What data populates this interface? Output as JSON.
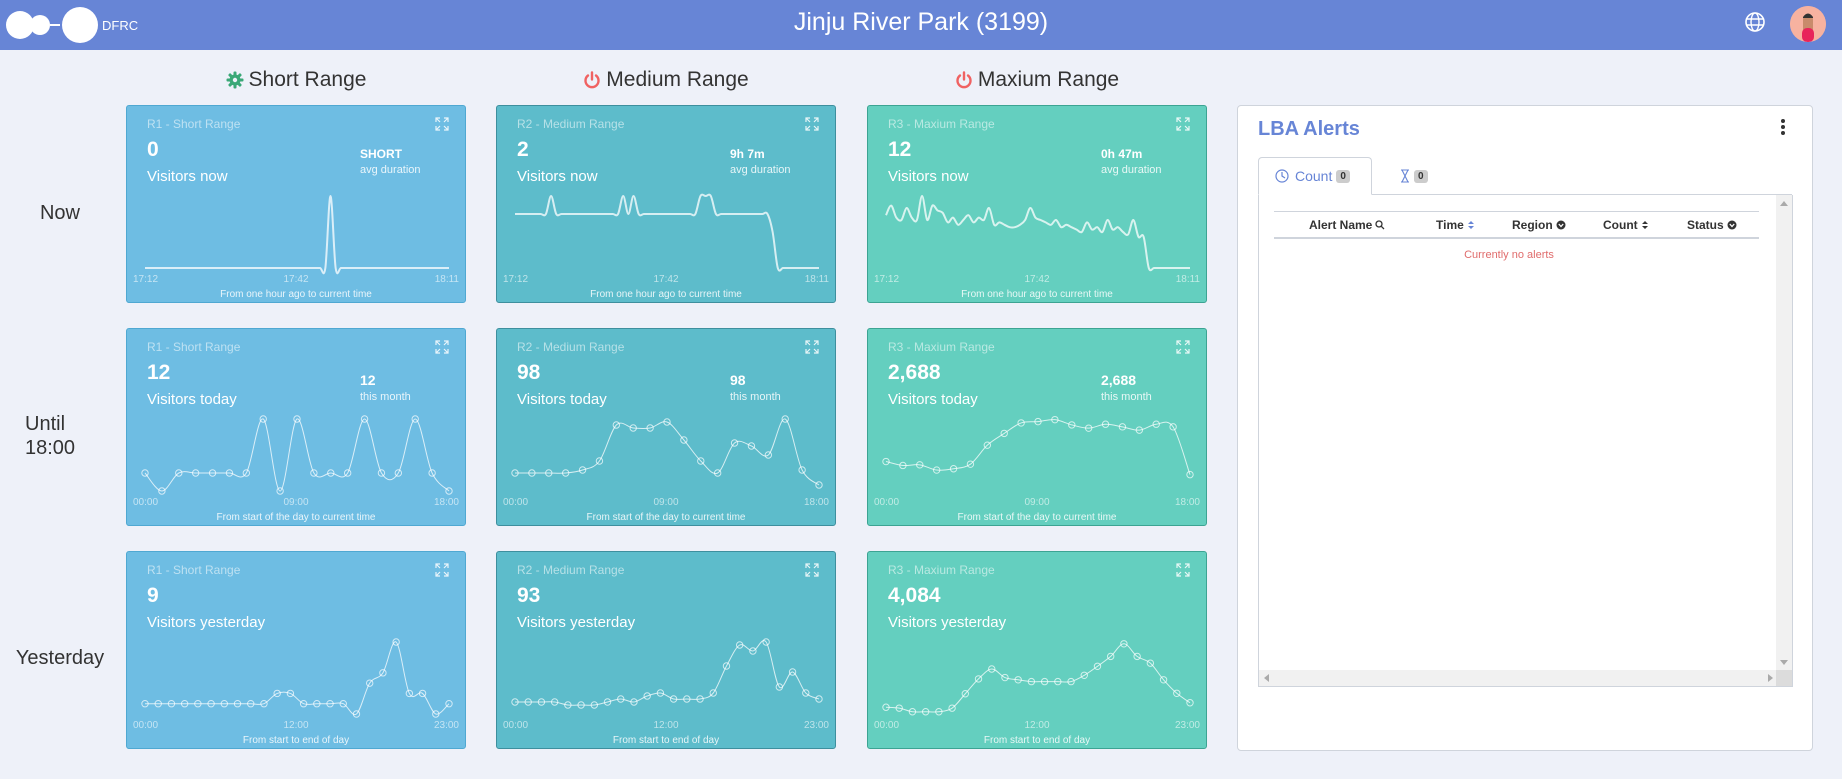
{
  "header": {
    "logo_text": "DFRC",
    "title": "Jinju River Park (3199)",
    "globe_icon": "globe-icon",
    "avatar_icon": "user-avatar"
  },
  "columns": [
    {
      "label": "Short Range",
      "icon": "gear-icon",
      "icon_color": "#3aa877"
    },
    {
      "label": "Medium Range",
      "icon": "power-icon",
      "icon_color": "#f06262"
    },
    {
      "label": "Maxium Range",
      "icon": "power-icon",
      "icon_color": "#f06262"
    }
  ],
  "rows": [
    {
      "label_line1": "Now",
      "label_line2": ""
    },
    {
      "label_line1": "Until",
      "label_line2": "18:00"
    },
    {
      "label_line1": "Yesterday",
      "label_line2": ""
    }
  ],
  "cards": {
    "now": [
      {
        "title": "R1 - Short Range",
        "value": "0",
        "value_label": "Visitors now",
        "side_value": "SHORT",
        "side_label": "avg duration",
        "ticks": [
          "17:12",
          "17:42",
          "18:11"
        ],
        "caption": "From one hour ago to current time"
      },
      {
        "title": "R2 - Medium Range",
        "value": "2",
        "value_label": "Visitors now",
        "side_value": "9h 7m",
        "side_label": "avg duration",
        "ticks": [
          "17:12",
          "17:42",
          "18:11"
        ],
        "caption": "From one hour ago to current time"
      },
      {
        "title": "R3 - Maxium Range",
        "value": "12",
        "value_label": "Visitors now",
        "side_value": "0h 47m",
        "side_label": "avg duration",
        "ticks": [
          "17:12",
          "17:42",
          "18:11"
        ],
        "caption": "From one hour ago to current time"
      }
    ],
    "today": [
      {
        "title": "R1 - Short Range",
        "value": "12",
        "value_label": "Visitors today",
        "side_value": "12",
        "side_label": "this month",
        "ticks": [
          "00:00",
          "09:00",
          "18:00"
        ],
        "caption": "From start of the day to current time"
      },
      {
        "title": "R2 - Medium Range",
        "value": "98",
        "value_label": "Visitors today",
        "side_value": "98",
        "side_label": "this month",
        "ticks": [
          "00:00",
          "09:00",
          "18:00"
        ],
        "caption": "From start of the day to current time"
      },
      {
        "title": "R3 - Maxium Range",
        "value": "2,688",
        "value_label": "Visitors today",
        "side_value": "2,688",
        "side_label": "this month",
        "ticks": [
          "00:00",
          "09:00",
          "18:00"
        ],
        "caption": "From start of the day to current time"
      }
    ],
    "yesterday": [
      {
        "title": "R1 - Short Range",
        "value": "9",
        "value_label": "Visitors yesterday",
        "ticks": [
          "00:00",
          "12:00",
          "23:00"
        ],
        "caption": "From start to end of day"
      },
      {
        "title": "R2 - Medium Range",
        "value": "93",
        "value_label": "Visitors yesterday",
        "ticks": [
          "00:00",
          "12:00",
          "23:00"
        ],
        "caption": "From start to end of day"
      },
      {
        "title": "R3 - Maxium Range",
        "value": "4,084",
        "value_label": "Visitors yesterday",
        "ticks": [
          "00:00",
          "12:00",
          "23:00"
        ],
        "caption": "From start to end of day"
      }
    ]
  },
  "chart_data": [
    {
      "type": "line",
      "title": "R1 - Short Range (now)",
      "x_range": [
        "17:12",
        "18:11"
      ],
      "series": [
        {
          "name": "visitors",
          "values": [
            0,
            0,
            0,
            0,
            0,
            0,
            0,
            0,
            0,
            0,
            0,
            0,
            0,
            0,
            0,
            0,
            0,
            0,
            0,
            0,
            0,
            0,
            0,
            0,
            0,
            0,
            0,
            0,
            0,
            0,
            0,
            0,
            0,
            0,
            0,
            0,
            1,
            0,
            0,
            0,
            0,
            0,
            0,
            0,
            0,
            0,
            0,
            0,
            0,
            0,
            0,
            0,
            0,
            0,
            0,
            0,
            0,
            0,
            0,
            0
          ]
        }
      ],
      "markers": false,
      "ylim": [
        0,
        1
      ]
    },
    {
      "type": "line",
      "title": "R2 - Medium Range (now)",
      "x_range": [
        "17:12",
        "18:11"
      ],
      "series": [
        {
          "name": "visitors",
          "values": [
            3,
            3,
            3,
            3,
            3,
            3,
            3,
            4,
            3,
            3,
            3,
            3,
            3,
            3,
            3,
            3,
            3,
            3,
            3,
            3,
            3,
            4,
            3,
            4,
            3,
            3,
            3,
            3,
            3,
            3,
            3,
            3,
            3,
            3,
            3,
            3,
            4,
            4,
            4,
            3,
            3,
            3,
            3,
            3,
            3,
            3,
            3,
            3,
            3,
            3,
            2,
            0,
            0,
            0,
            0,
            0,
            0,
            0,
            0,
            0
          ]
        }
      ],
      "markers": false,
      "ylim": [
        0,
        4
      ]
    },
    {
      "type": "line",
      "title": "R3 - Maxium Range (now)",
      "x_range": [
        "17:12",
        "18:11"
      ],
      "series": [
        {
          "name": "visitors",
          "values": [
            22,
            26,
            21,
            20,
            25,
            21,
            20,
            30,
            20,
            26,
            24,
            23,
            19,
            21,
            18,
            20,
            22,
            19,
            21,
            20,
            25,
            18,
            19,
            18,
            17,
            17,
            18,
            20,
            25,
            21,
            20,
            19,
            18,
            20,
            17,
            18,
            17,
            16,
            15,
            19,
            16,
            17,
            15,
            20,
            16,
            17,
            15,
            14,
            20,
            13,
            13,
            0,
            0,
            0,
            0,
            0,
            0,
            0,
            0,
            0
          ]
        }
      ],
      "markers": false,
      "ylim": [
        0,
        30
      ]
    },
    {
      "type": "line",
      "title": "R1 - Short Range (today)",
      "x": [
        "00:00",
        "01:00",
        "02:00",
        "03:00",
        "04:00",
        "05:00",
        "06:00",
        "07:00",
        "08:00",
        "09:00",
        "10:00",
        "11:00",
        "12:00",
        "13:00",
        "14:00",
        "15:00",
        "16:00",
        "17:00",
        "18:00"
      ],
      "series": [
        {
          "name": "visitors",
          "values": [
            1,
            0,
            1,
            1,
            1,
            1,
            1,
            4,
            0,
            4,
            1,
            1,
            1,
            4,
            1,
            1,
            4,
            1,
            0
          ]
        }
      ],
      "markers": true,
      "ylim": [
        0,
        4
      ]
    },
    {
      "type": "line",
      "title": "R2 - Medium Range (today)",
      "x": [
        "00:00",
        "01:00",
        "02:00",
        "03:00",
        "04:00",
        "05:00",
        "06:00",
        "07:00",
        "08:00",
        "09:00",
        "10:00",
        "11:00",
        "12:00",
        "13:00",
        "14:00",
        "15:00",
        "16:00",
        "17:00",
        "18:00"
      ],
      "series": [
        {
          "name": "visitors",
          "values": [
            3,
            3,
            3,
            3,
            3.5,
            5,
            11,
            10.5,
            10.5,
            11.5,
            8.5,
            5,
            3,
            8,
            7.5,
            6,
            12,
            3.5,
            1
          ]
        }
      ],
      "markers": true,
      "ylim": [
        0,
        12
      ]
    },
    {
      "type": "line",
      "title": "R3 - Maxium Range (today)",
      "x": [
        "00:00",
        "01:00",
        "02:00",
        "03:00",
        "04:00",
        "05:00",
        "06:00",
        "07:00",
        "08:00",
        "09:00",
        "10:00",
        "11:00",
        "12:00",
        "13:00",
        "14:00",
        "15:00",
        "16:00",
        "17:00",
        "18:00"
      ],
      "series": [
        {
          "name": "visitors",
          "values": [
            45,
            39,
            40,
            32,
            34,
            41,
            70,
            88,
            104,
            106,
            109,
            101,
            96,
            102,
            98,
            93,
            102,
            98,
            25
          ]
        }
      ],
      "markers": true,
      "ylim": [
        0,
        110
      ]
    },
    {
      "type": "line",
      "title": "R1 - Short Range (yesterday)",
      "x": [
        "00:00",
        "01:00",
        "02:00",
        "03:00",
        "04:00",
        "05:00",
        "06:00",
        "07:00",
        "08:00",
        "09:00",
        "10:00",
        "11:00",
        "12:00",
        "13:00",
        "14:00",
        "15:00",
        "16:00",
        "17:00",
        "18:00",
        "19:00",
        "20:00",
        "21:00",
        "22:00",
        "23:00"
      ],
      "series": [
        {
          "name": "visitors",
          "values": [
            0,
            0,
            0,
            0,
            0,
            0,
            0,
            0,
            0,
            0,
            0.5,
            0.5,
            0,
            0,
            0,
            0,
            -0.5,
            1,
            1.5,
            3,
            0.5,
            0.5,
            -0.5,
            0
          ]
        }
      ],
      "markers": true,
      "ylim": [
        -0.5,
        3
      ]
    },
    {
      "type": "line",
      "title": "R2 - Medium Range (yesterday)",
      "x": [
        "00:00",
        "01:00",
        "02:00",
        "03:00",
        "04:00",
        "05:00",
        "06:00",
        "07:00",
        "08:00",
        "09:00",
        "10:00",
        "11:00",
        "12:00",
        "13:00",
        "14:00",
        "15:00",
        "16:00",
        "17:00",
        "18:00",
        "19:00",
        "20:00",
        "21:00",
        "22:00",
        "23:00"
      ],
      "series": [
        {
          "name": "visitors",
          "values": [
            2,
            2,
            2,
            2,
            1.5,
            1.5,
            1.5,
            2,
            2.5,
            2,
            3,
            3.5,
            2.5,
            2.5,
            2.5,
            3.5,
            8,
            11.5,
            10.5,
            12,
            4.5,
            7,
            3.5,
            2.5
          ]
        }
      ],
      "markers": true,
      "ylim": [
        0,
        12
      ]
    },
    {
      "type": "line",
      "title": "R3 - Maxium Range (yesterday)",
      "x": [
        "00:00",
        "01:00",
        "02:00",
        "03:00",
        "04:00",
        "05:00",
        "06:00",
        "07:00",
        "08:00",
        "09:00",
        "10:00",
        "11:00",
        "12:00",
        "13:00",
        "14:00",
        "15:00",
        "16:00",
        "17:00",
        "18:00",
        "19:00",
        "20:00",
        "21:00",
        "22:00",
        "23:00"
      ],
      "series": [
        {
          "name": "visitors",
          "values": [
            105,
            103,
            95,
            95,
            95,
            103,
            135,
            168,
            190,
            171,
            166,
            162,
            162,
            162,
            162,
            176,
            196,
            218,
            246,
            218,
            203,
            166,
            136,
            115
          ]
        }
      ],
      "markers": true,
      "ylim": [
        90,
        250
      ]
    }
  ],
  "alerts": {
    "title": "LBA Alerts",
    "tabs": [
      {
        "label": "Count",
        "icon": "clock-icon",
        "badge": "0"
      },
      {
        "label": "",
        "icon": "hourglass-icon",
        "badge": "0"
      }
    ],
    "columns": [
      {
        "label": "Alert Name",
        "icon": "search-icon"
      },
      {
        "label": "Time",
        "icon": "sort-icon"
      },
      {
        "label": "Region",
        "icon": "filter-icon"
      },
      {
        "label": "Count",
        "icon": "sort-icon"
      },
      {
        "label": "Status",
        "icon": "filter-icon"
      }
    ],
    "empty_message": "Currently no alerts"
  }
}
